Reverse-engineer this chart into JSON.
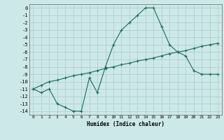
{
  "xlabel": "Humidex (Indice chaleur)",
  "bg_color": "#cde8e8",
  "grid_color": "#b0d0d0",
  "line_color": "#1a6b5a",
  "xlim": [
    -0.5,
    23.5
  ],
  "ylim": [
    -14.5,
    0.5
  ],
  "xticks": [
    0,
    1,
    2,
    3,
    4,
    5,
    6,
    7,
    8,
    9,
    10,
    11,
    12,
    13,
    14,
    15,
    16,
    17,
    18,
    19,
    20,
    21,
    22,
    23
  ],
  "yticks": [
    0,
    -1,
    -2,
    -3,
    -4,
    -5,
    -6,
    -7,
    -8,
    -9,
    -10,
    -11,
    -12,
    -13,
    -14
  ],
  "line1_x": [
    0,
    1,
    2,
    3,
    4,
    5,
    6,
    7,
    8,
    9,
    10,
    11,
    12,
    13,
    14,
    15,
    16,
    17,
    18,
    19,
    20,
    21,
    22,
    23
  ],
  "line1_y": [
    -11.0,
    -11.5,
    -11.0,
    -13.0,
    -13.5,
    -14.0,
    -14.0,
    -9.5,
    -11.5,
    -8.0,
    -5.0,
    -3.0,
    -2.0,
    -1.0,
    0.0,
    0.0,
    -2.5,
    -5.0,
    -6.0,
    -6.5,
    -8.5,
    -9.0,
    -9.0,
    -9.0
  ],
  "line2_x": [
    0,
    1,
    2,
    3,
    4,
    5,
    6,
    7,
    8,
    9,
    10,
    11,
    12,
    13,
    14,
    15,
    16,
    17,
    18,
    19,
    20,
    21,
    22,
    23
  ],
  "line2_y": [
    -11.0,
    -10.5,
    -10.0,
    -9.8,
    -9.5,
    -9.2,
    -9.0,
    -8.8,
    -8.5,
    -8.2,
    -8.0,
    -7.7,
    -7.5,
    -7.2,
    -7.0,
    -6.8,
    -6.5,
    -6.2,
    -6.0,
    -5.8,
    -5.5,
    -5.2,
    -5.0,
    -4.8
  ]
}
